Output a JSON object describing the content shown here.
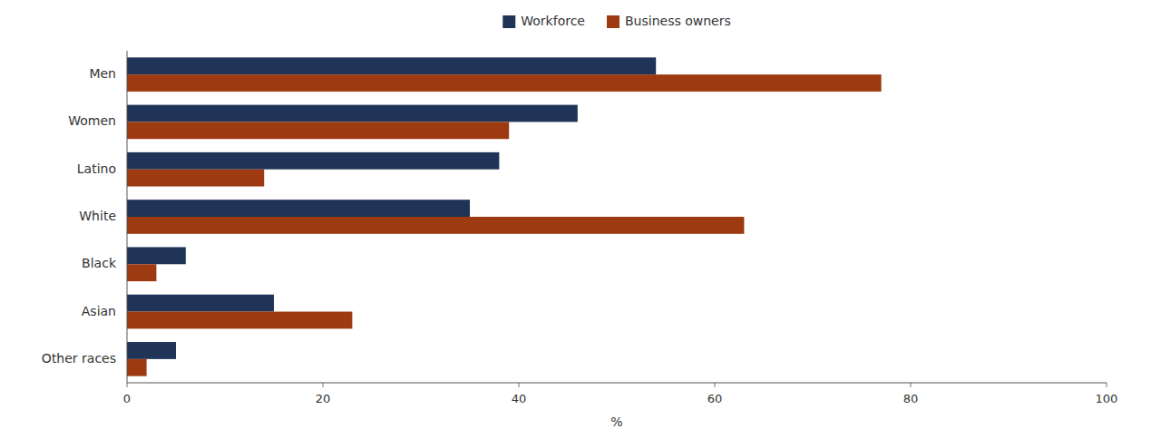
{
  "chart_data": {
    "type": "bar",
    "orientation": "horizontal",
    "categories": [
      "Men",
      "Women",
      "Latino",
      "White",
      "Black",
      "Asian",
      "Other races"
    ],
    "series": [
      {
        "name": "Workforce",
        "color": "#1f3457",
        "values": [
          54,
          46,
          38,
          35,
          6,
          15,
          5
        ]
      },
      {
        "name": "Business owners",
        "color": "#9e3a12",
        "values": [
          77,
          39,
          14,
          63,
          3,
          23,
          2
        ]
      }
    ],
    "xlabel": "%",
    "xlim": [
      0,
      100
    ],
    "xticks": [
      0,
      20,
      40,
      60,
      80,
      100
    ],
    "grid": false,
    "legend": "top"
  }
}
